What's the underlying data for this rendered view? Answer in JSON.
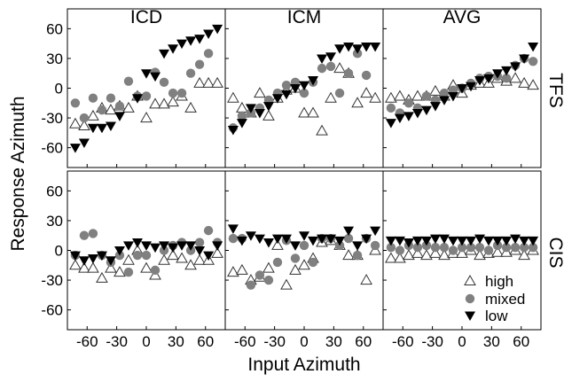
{
  "colors": {
    "high_fill": "#ffffff",
    "high_stroke": "#333333",
    "mixed": "#808080",
    "low": "#000000",
    "axis": "#000000"
  },
  "chart_data": {
    "type": "scatter",
    "layout": "2x3 panel grid, shared axes",
    "xlabel": "Input Azimuth",
    "ylabel": "Response Azimuth",
    "xlim": [
      -80,
      80
    ],
    "ylim": [
      -80,
      80
    ],
    "xticks": [
      -60,
      -30,
      0,
      30,
      60
    ],
    "yticks": [
      -60,
      -30,
      0,
      30,
      60
    ],
    "xtick_labels": [
      "-60",
      "-30",
      "0",
      "30",
      "60"
    ],
    "ytick_labels": [
      "-60",
      "-30",
      "0",
      "30",
      "60"
    ],
    "ytick_labels_bottom_row": [
      "-60",
      "-30",
      "0",
      "30",
      "60"
    ],
    "column_titles": [
      "ICD",
      "ICM",
      "AVG"
    ],
    "row_labels": [
      "TFS",
      "CIS"
    ],
    "grid": false,
    "legend": {
      "placement": "lower-right of bottom-right panel",
      "entries": [
        {
          "label": "high",
          "marker": "triangle-up-open"
        },
        {
          "label": "mixed",
          "marker": "circle-filled-gray"
        },
        {
          "label": "low",
          "marker": "triangle-down-filled-black"
        }
      ]
    },
    "x": [
      -72,
      -63,
      -54,
      -45,
      -36,
      -27,
      -18,
      -9,
      0,
      9,
      18,
      27,
      36,
      45,
      54,
      63,
      72
    ],
    "panels": [
      {
        "row": "TFS",
        "column": "ICD",
        "series": [
          {
            "name": "high",
            "values": [
              -36,
              -38,
              -28,
              -20,
              -22,
              -18,
              -20,
              -8,
              -30,
              -16,
              -16,
              -14,
              -8,
              -20,
              5,
              5,
              5
            ]
          },
          {
            "name": "mixed",
            "values": [
              -15,
              -30,
              -10,
              -22,
              -10,
              -18,
              7,
              -8,
              -8,
              16,
              6,
              -5,
              -5,
              15,
              24,
              35,
              null
            ]
          },
          {
            "name": "low",
            "values": [
              -60,
              -55,
              -40,
              -40,
              -38,
              -28,
              null,
              -10,
              15,
              12,
              35,
              40,
              45,
              48,
              50,
              55,
              60
            ]
          }
        ]
      },
      {
        "row": "TFS",
        "column": "ICM",
        "series": [
          {
            "name": "high",
            "values": [
              -10,
              -20,
              -25,
              -5,
              -28,
              -10,
              -2,
              0,
              -25,
              -25,
              -43,
              -10,
              20,
              15,
              -15,
              -5,
              -10
            ]
          },
          {
            "name": "mixed",
            "values": [
              -40,
              -28,
              -25,
              -20,
              -12,
              -5,
              3,
              6,
              -5,
              6,
              20,
              22,
              -5,
              15,
              35,
              13,
              null
            ]
          },
          {
            "name": "low",
            "values": [
              -42,
              -35,
              -20,
              -25,
              -18,
              -10,
              -6,
              0,
              3,
              8,
              30,
              32,
              40,
              42,
              40,
              42,
              42
            ]
          }
        ]
      },
      {
        "row": "TFS",
        "column": "AVG",
        "series": [
          {
            "name": "high",
            "values": [
              -10,
              -8,
              -12,
              -8,
              -8,
              -3,
              -8,
              3,
              -5,
              3,
              5,
              5,
              10,
              7,
              10,
              5,
              3
            ]
          },
          {
            "name": "mixed",
            "values": [
              -20,
              -25,
              -15,
              -20,
              -8,
              -12,
              -5,
              -2,
              0,
              5,
              10,
              12,
              12,
              10,
              23,
              30,
              27
            ]
          },
          {
            "name": "low",
            "values": [
              -35,
              -30,
              -28,
              -25,
              -22,
              -18,
              -12,
              -8,
              0,
              2,
              8,
              10,
              15,
              18,
              22,
              30,
              42
            ]
          }
        ]
      },
      {
        "row": "CIS",
        "column": "ICD",
        "series": [
          {
            "name": "high",
            "values": [
              -15,
              -18,
              -18,
              -28,
              -18,
              -22,
              -10,
              0,
              -18,
              -25,
              -10,
              -5,
              -8,
              -15,
              -10,
              -10,
              -3
            ]
          },
          {
            "name": "mixed",
            "values": [
              -5,
              15,
              17,
              -5,
              -12,
              -5,
              -22,
              -5,
              -5,
              -20,
              0,
              5,
              8,
              0,
              8,
              20,
              8
            ]
          },
          {
            "name": "low",
            "values": [
              -5,
              -10,
              -8,
              -5,
              -10,
              0,
              5,
              8,
              5,
              3,
              5,
              3,
              5,
              5,
              0,
              -5,
              5
            ]
          }
        ]
      },
      {
        "row": "CIS",
        "column": "ICM",
        "series": [
          {
            "name": "high",
            "values": [
              -22,
              -20,
              -30,
              -27,
              -18,
              5,
              -35,
              -20,
              -15,
              -8,
              8,
              10,
              5,
              -5,
              -5,
              -30,
              0
            ]
          },
          {
            "name": "mixed",
            "values": [
              12,
              12,
              -35,
              -25,
              -30,
              -12,
              10,
              -8,
              5,
              -12,
              12,
              12,
              5,
              12,
              -5,
              12,
              5
            ]
          },
          {
            "name": "low",
            "values": [
              22,
              10,
              15,
              12,
              8,
              12,
              12,
              5,
              15,
              10,
              12,
              12,
              10,
              20,
              5,
              12,
              20
            ]
          }
        ]
      },
      {
        "row": "CIS",
        "column": "AVG",
        "series": [
          {
            "name": "high",
            "values": [
              -8,
              -8,
              -5,
              -3,
              -5,
              -3,
              -5,
              -3,
              -3,
              0,
              -5,
              -3,
              -2,
              -2,
              0,
              -5,
              0
            ]
          },
          {
            "name": "mixed",
            "values": [
              3,
              0,
              5,
              3,
              5,
              3,
              3,
              0,
              3,
              3,
              3,
              0,
              5,
              3,
              3,
              3,
              3
            ]
          },
          {
            "name": "low",
            "values": [
              10,
              10,
              8,
              10,
              10,
              12,
              12,
              10,
              10,
              10,
              12,
              10,
              10,
              10,
              12,
              10,
              10
            ]
          }
        ]
      }
    ]
  }
}
